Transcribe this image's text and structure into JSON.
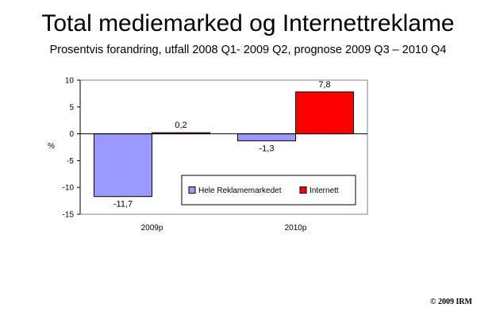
{
  "chart_data": {
    "type": "bar",
    "title": "Total mediemarked og Internettreklame",
    "subtitle": "Prosentvis forandring, utfall 2008 Q1- 2009 Q2, prognose 2009 Q3 – 2010 Q4",
    "ylabel": "%",
    "xlabel": "",
    "ylim": [
      -15,
      10
    ],
    "yticks": [
      10,
      5,
      0,
      -5,
      -10,
      -15
    ],
    "categories": [
      "2009p",
      "2010p"
    ],
    "series": [
      {
        "name": "Hele Reklamemarkedet",
        "values": [
          -11.7,
          -1.3
        ],
        "labels": [
          "-11,7",
          "-1,3"
        ],
        "color": "#9999ff"
      },
      {
        "name": "Internett",
        "values": [
          0.2,
          7.8
        ],
        "labels": [
          "0,2",
          "7,8"
        ],
        "color": "#ff0000"
      }
    ],
    "grid": false,
    "legend_position": "bottom-right"
  },
  "copyright": "© 2009 IRM"
}
